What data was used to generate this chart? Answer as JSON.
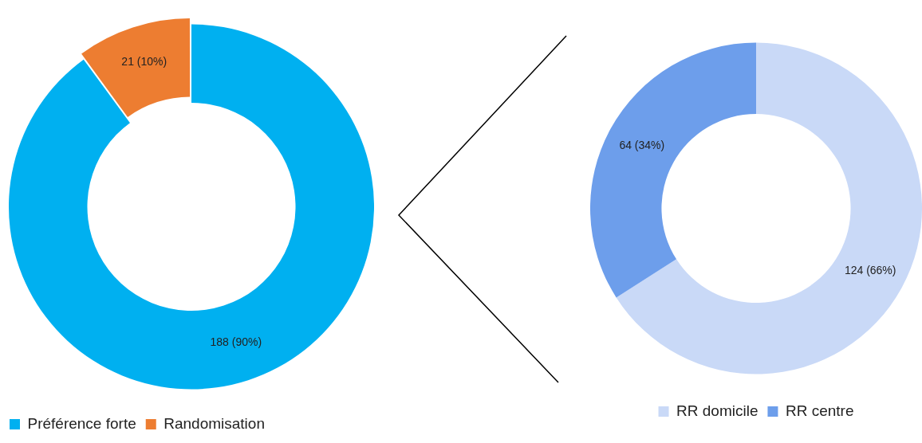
{
  "chart_data": [
    {
      "type": "donut",
      "categories": [
        "Préférence forte",
        "Randomisation"
      ],
      "values": [
        188,
        21
      ],
      "colors": [
        "#00b0f0",
        "#ed7d31"
      ],
      "value_labels": [
        "188 (90%)",
        "21 (10%)"
      ],
      "legend": "bottom left"
    },
    {
      "type": "donut",
      "categories": [
        "RR domicile",
        "RR centre"
      ],
      "values": [
        124,
        64
      ],
      "colors": [
        "#c9d9f7",
        "#6d9eeb"
      ],
      "value_labels": [
        "124 (66%)",
        "64 (34%)"
      ],
      "legend": "bottom"
    }
  ]
}
